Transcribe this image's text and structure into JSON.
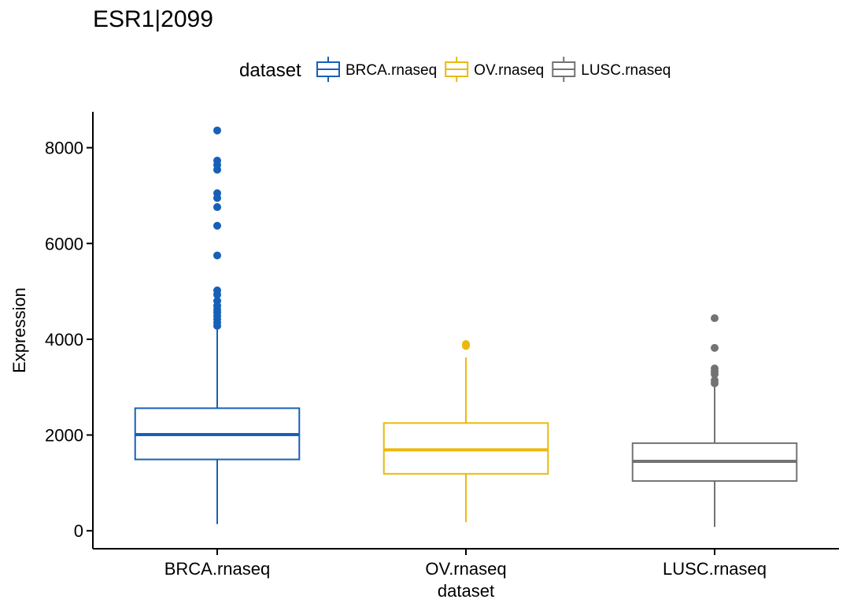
{
  "chart_data": {
    "type": "box",
    "title": "ESR1|2099",
    "xlabel": "dataset",
    "ylabel": "Expression",
    "ylim": [
      -375,
      8750
    ],
    "yticks": [
      0,
      2000,
      4000,
      6000,
      8000
    ],
    "legend": {
      "title": "dataset",
      "position": "top"
    },
    "categories": [
      "BRCA.rnaseq",
      "OV.rnaseq",
      "LUSC.rnaseq"
    ],
    "series": [
      {
        "name": "BRCA.rnaseq",
        "color": "#1660B8",
        "min": 140,
        "q1": 1490,
        "median": 2010,
        "q3": 2560,
        "max": 4200,
        "outliers": [
          8360,
          7730,
          7640,
          7540,
          7050,
          6950,
          6760,
          6370,
          5750,
          5020,
          4930,
          4800,
          4700,
          4620,
          4560,
          4490,
          4420,
          4350,
          4280
        ]
      },
      {
        "name": "OV.rnaseq",
        "color": "#EBB90E",
        "min": 180,
        "q1": 1190,
        "median": 1690,
        "q3": 2250,
        "max": 3620,
        "outliers": [
          3900,
          3880,
          3860
        ]
      },
      {
        "name": "LUSC.rnaseq",
        "color": "#737373",
        "min": 80,
        "q1": 1040,
        "median": 1450,
        "q3": 1830,
        "max": 3000,
        "outliers": [
          4440,
          3820,
          3390,
          3330,
          3270,
          3140,
          3080
        ]
      }
    ]
  }
}
